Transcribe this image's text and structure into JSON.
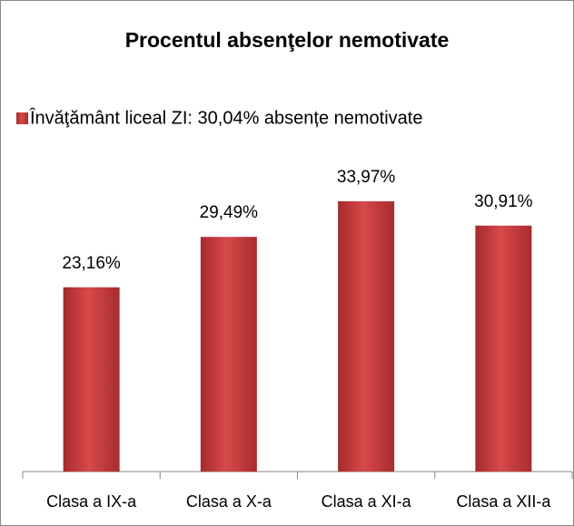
{
  "chart_data": {
    "type": "bar",
    "title": "Procentul absenţelor nemotivate",
    "categories": [
      "Clasa a IX-a",
      "Clasa a X-a",
      "Clasa a XI-a",
      "Clasa a XII-a"
    ],
    "series": [
      {
        "name": "Învăţământ liceal ZI: 30,04% absențe nemotivate",
        "color": "#c0393b",
        "values": [
          23.16,
          29.49,
          33.97,
          30.91
        ],
        "value_labels": [
          "23,16%",
          "29,49%",
          "33,97%",
          "30,91%"
        ]
      }
    ],
    "ylim": [
      0,
      40
    ],
    "legend": "top"
  }
}
